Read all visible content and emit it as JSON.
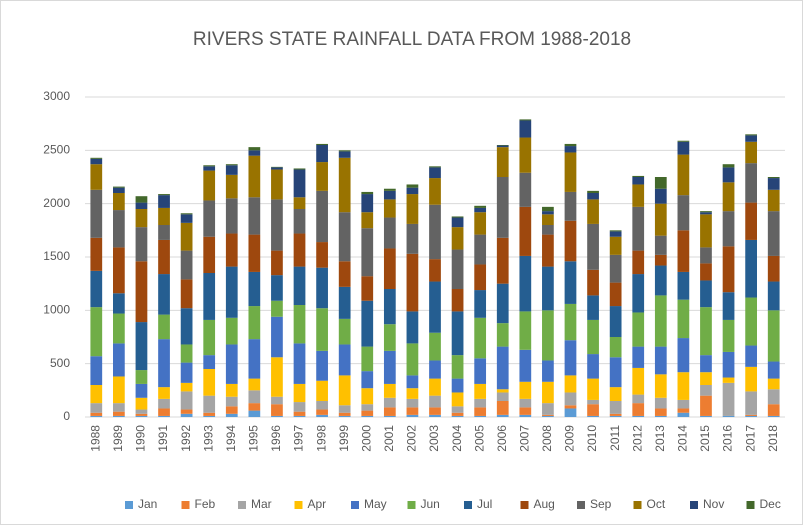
{
  "chart_data": {
    "type": "stacked_bar",
    "title": "RIVERS STATE RAINFALL DATA FROM 1988-2018",
    "categories": [
      "1988",
      "1989",
      "1990",
      "1991",
      "1992",
      "1993",
      "1994",
      "1995",
      "1996",
      "1997",
      "1998",
      "1999",
      "2000",
      "2001",
      "2002",
      "2003",
      "2004",
      "2005",
      "2006",
      "2007",
      "2008",
      "2009",
      "2010",
      "2011",
      "2012",
      "2013",
      "2014",
      "2015",
      "2016",
      "2017",
      "2018"
    ],
    "ylim": [
      0,
      3000
    ],
    "yticks": [
      0,
      500,
      1000,
      1500,
      2000,
      2500,
      3000
    ],
    "grid": true,
    "legend": "bottom",
    "series": [
      {
        "name": "Jan",
        "color": "#5b9bd5",
        "values": [
          10,
          10,
          10,
          10,
          30,
          10,
          30,
          60,
          10,
          10,
          20,
          10,
          10,
          10,
          20,
          20,
          10,
          10,
          20,
          20,
          10,
          80,
          10,
          10,
          10,
          10,
          40,
          10,
          10,
          10,
          10
        ]
      },
      {
        "name": "Feb",
        "color": "#ed7d31",
        "values": [
          30,
          40,
          20,
          70,
          40,
          30,
          70,
          70,
          110,
          40,
          50,
          30,
          50,
          80,
          70,
          70,
          30,
          80,
          130,
          70,
          10,
          30,
          110,
          20,
          120,
          70,
          40,
          190,
          0,
          10,
          110
        ]
      },
      {
        "name": "Mar",
        "color": "#a5a5a5",
        "values": [
          90,
          80,
          40,
          90,
          170,
          160,
          90,
          120,
          70,
          90,
          80,
          70,
          60,
          90,
          80,
          110,
          60,
          80,
          80,
          80,
          110,
          120,
          40,
          120,
          80,
          100,
          80,
          100,
          310,
          220,
          140
        ]
      },
      {
        "name": "Apr",
        "color": "#ffc000",
        "values": [
          170,
          250,
          110,
          110,
          80,
          250,
          120,
          110,
          370,
          170,
          190,
          280,
          150,
          130,
          100,
          160,
          130,
          140,
          30,
          160,
          200,
          160,
          200,
          130,
          250,
          220,
          260,
          120,
          50,
          230,
          100
        ]
      },
      {
        "name": "May",
        "color": "#4472c4",
        "values": [
          270,
          310,
          130,
          450,
          190,
          130,
          370,
          370,
          380,
          380,
          280,
          290,
          160,
          310,
          120,
          170,
          130,
          240,
          400,
          300,
          200,
          330,
          230,
          280,
          200,
          260,
          320,
          160,
          240,
          200,
          160
        ]
      },
      {
        "name": "Jun",
        "color": "#70ad47",
        "values": [
          460,
          280,
          130,
          230,
          170,
          330,
          250,
          310,
          150,
          360,
          400,
          240,
          230,
          250,
          300,
          260,
          220,
          380,
          220,
          360,
          470,
          340,
          320,
          190,
          320,
          480,
          360,
          450,
          300,
          450,
          480
        ]
      },
      {
        "name": "Jul",
        "color": "#255e91",
        "values": [
          340,
          190,
          450,
          380,
          340,
          440,
          480,
          320,
          240,
          360,
          380,
          300,
          430,
          330,
          300,
          480,
          410,
          260,
          370,
          520,
          410,
          400,
          230,
          290,
          360,
          280,
          260,
          250,
          260,
          540,
          270
        ]
      },
      {
        "name": "Aug",
        "color": "#9e480e",
        "values": [
          310,
          430,
          570,
          320,
          270,
          340,
          310,
          350,
          230,
          310,
          240,
          240,
          230,
          380,
          540,
          210,
          210,
          240,
          430,
          460,
          300,
          380,
          240,
          220,
          220,
          100,
          390,
          160,
          430,
          350,
          240
        ]
      },
      {
        "name": "Sep",
        "color": "#636363",
        "values": [
          450,
          350,
          320,
          140,
          270,
          340,
          330,
          350,
          480,
          230,
          480,
          460,
          450,
          290,
          280,
          510,
          370,
          280,
          570,
          320,
          90,
          270,
          430,
          260,
          410,
          180,
          330,
          150,
          330,
          370,
          420
        ]
      },
      {
        "name": "Oct",
        "color": "#997300",
        "values": [
          240,
          160,
          170,
          160,
          260,
          280,
          220,
          390,
          280,
          110,
          270,
          510,
          150,
          170,
          280,
          250,
          210,
          210,
          280,
          330,
          100,
          370,
          230,
          170,
          210,
          300,
          380,
          310,
          270,
          200,
          200
        ]
      },
      {
        "name": "Nov",
        "color": "#264478",
        "values": [
          50,
          50,
          60,
          120,
          80,
          40,
          90,
          50,
          20,
          260,
          160,
          60,
          170,
          80,
          60,
          100,
          90,
          40,
          15,
          160,
          30,
          60,
          60,
          50,
          70,
          140,
          120,
          20,
          140,
          60,
          110
        ]
      },
      {
        "name": "Dec",
        "color": "#43682b",
        "values": [
          10,
          10,
          60,
          10,
          10,
          10,
          10,
          30,
          5,
          10,
          10,
          10,
          20,
          20,
          30,
          10,
          10,
          20,
          5,
          10,
          40,
          20,
          20,
          10,
          10,
          110,
          10,
          10,
          30,
          10,
          10
        ]
      }
    ]
  }
}
